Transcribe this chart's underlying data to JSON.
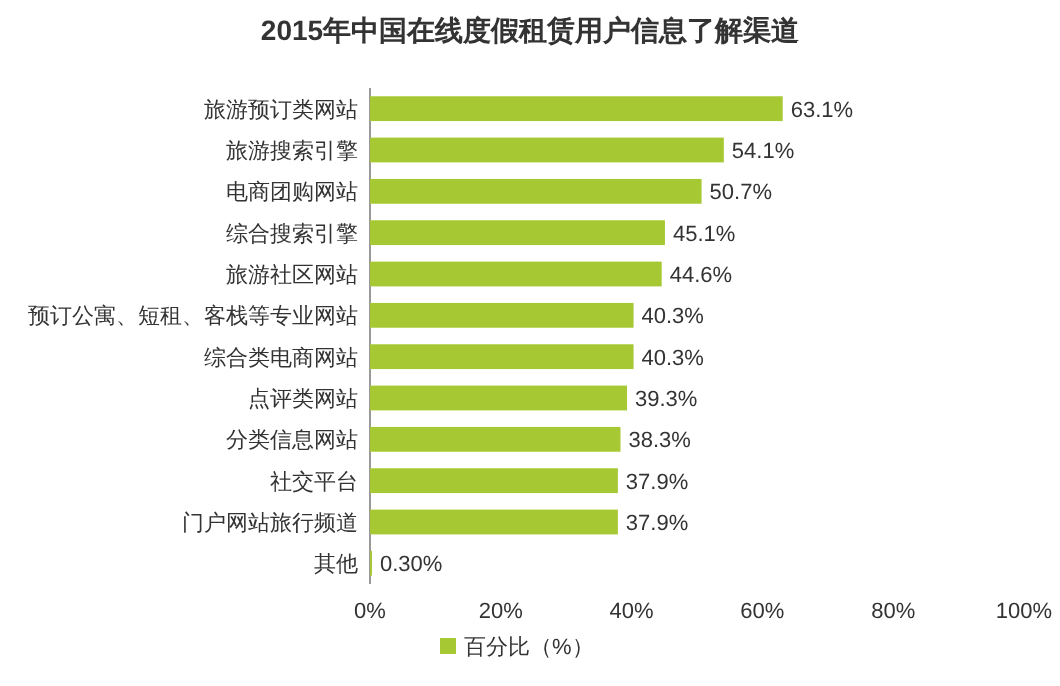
{
  "chart_data": {
    "type": "bar",
    "orientation": "horizontal",
    "title": "2015年中国在线度假租赁用户信息了解渠道",
    "categories": [
      "旅游预订类网站",
      "旅游搜索引擎",
      "电商团购网站",
      "综合搜索引擎",
      "旅游社区网站",
      "预订公寓、短租、客栈等专业网站",
      "综合类电商网站",
      "点评类网站",
      "分类信息网站",
      "社交平台",
      "门户网站旅行频道",
      "其他"
    ],
    "series": [
      {
        "name": "百分比（%）",
        "color": "#a6c832",
        "values": [
          63.1,
          54.1,
          50.7,
          45.1,
          44.6,
          40.3,
          40.3,
          39.3,
          38.3,
          37.9,
          37.9,
          0.3
        ],
        "value_labels": [
          "63.1%",
          "54.1%",
          "50.7%",
          "45.1%",
          "44.6%",
          "40.3%",
          "40.3%",
          "39.3%",
          "38.3%",
          "37.9%",
          "37.9%",
          "0.30%"
        ]
      }
    ],
    "xlim": [
      0,
      100
    ],
    "xticks": [
      {
        "value": 0,
        "label": "0%"
      },
      {
        "value": 20,
        "label": "20%"
      },
      {
        "value": 40,
        "label": "40%"
      },
      {
        "value": 60,
        "label": "60%"
      },
      {
        "value": 80,
        "label": "80%"
      },
      {
        "value": 100,
        "label": "100%"
      }
    ],
    "legend": "bottom",
    "grid": false
  }
}
